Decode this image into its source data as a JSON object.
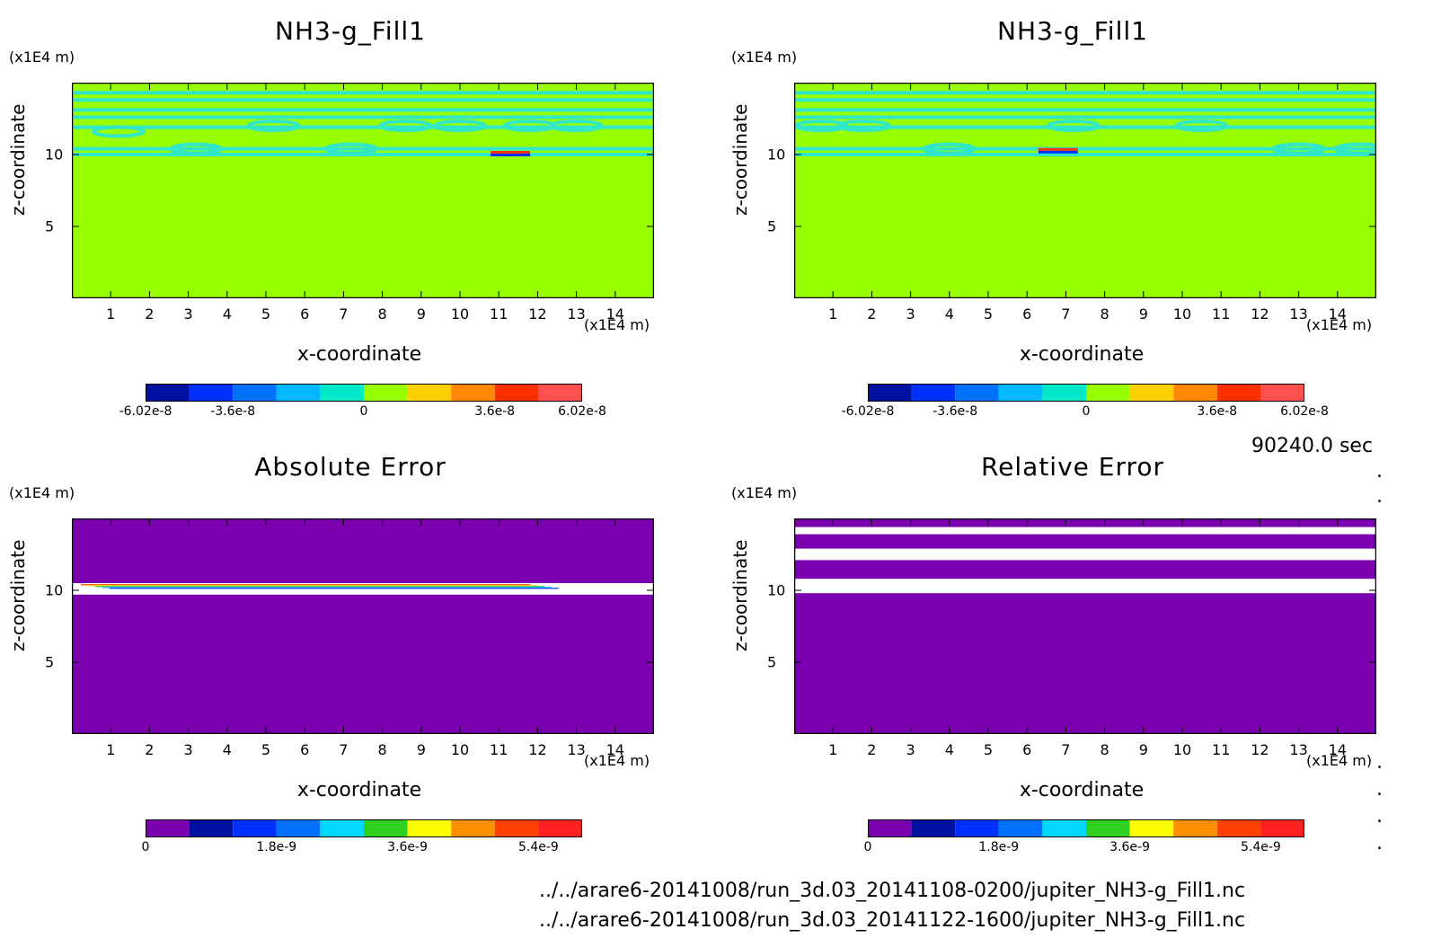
{
  "colors": {
    "background": "#98ff00",
    "contour": "#30e8c8",
    "error_bg": "#7a00b0",
    "white": "#ffffff",
    "colorbar_top": [
      "#0010a0",
      "#0030ff",
      "#0070ff",
      "#00b8ff",
      "#00e8c8",
      "#98ff00",
      "#ffd000",
      "#ff8800",
      "#ff3000",
      "#ff5050"
    ],
    "colorbar_bottom": [
      "#7a00b0",
      "#0010a0",
      "#0030ff",
      "#0070ff",
      "#00d8ff",
      "#30d020",
      "#ffff00",
      "#ff9000",
      "#ff4000",
      "#ff2020"
    ]
  },
  "annotations": {
    "timestamp": "90240.0 sec",
    "file_1": "../../arare6-20141008/run_3d.03_20141108-0200/jupiter_NH3-g_Fill1.nc",
    "file_2": "../../arare6-20141008/run_3d.03_20141122-1600/jupiter_NH3-g_Fill1.nc"
  },
  "panels": [
    {
      "title": "NH3-g_Fill1",
      "xlabel": "x-coordinate",
      "ylabel": "z-coordinate",
      "x_unit": "(x1E4 m)",
      "y_unit": "(x1E4 m)",
      "colorbar_labels": [
        "-6.02e-8",
        "-3.6e-8",
        "0",
        "3.6e-8",
        "6.02e-8"
      ]
    },
    {
      "title": "NH3-g_Fill1",
      "xlabel": "x-coordinate",
      "ylabel": "z-coordinate",
      "x_unit": "(x1E4 m)",
      "y_unit": "(x1E4 m)",
      "colorbar_labels": [
        "-6.02e-8",
        "-3.6e-8",
        "0",
        "3.6e-8",
        "6.02e-8"
      ]
    },
    {
      "title": "Absolute Error",
      "xlabel": "x-coordinate",
      "ylabel": "z-coordinate",
      "x_unit": "(x1E4 m)",
      "y_unit": "(x1E4 m)",
      "colorbar_labels": [
        "0",
        "1.8e-9",
        "3.6e-9",
        "5.4e-9"
      ]
    },
    {
      "title": "Relative Error",
      "xlabel": "x-coordinate",
      "ylabel": "z-coordinate",
      "x_unit": "(x1E4 m)",
      "y_unit": "(x1E4 m)",
      "colorbar_labels": [
        "0",
        "1.8e-9",
        "3.6e-9",
        "5.4e-9"
      ]
    }
  ],
  "chart_data": [
    {
      "type": "heatmap",
      "title": "NH3-g_Fill1",
      "xlabel": "x-coordinate",
      "ylabel": "z-coordinate",
      "xlim": [
        0,
        15
      ],
      "ylim": [
        0,
        15
      ],
      "xticks": [
        1,
        2,
        3,
        4,
        5,
        6,
        7,
        8,
        9,
        10,
        11,
        12,
        13,
        14
      ],
      "yticks": [
        5,
        10
      ],
      "colorbar": {
        "min": -6.02e-08,
        "max": 6.02e-08,
        "ticks": [
          "-6.02e-8",
          "-3.6e-8",
          "0",
          "3.6e-8",
          "6.02e-8"
        ]
      },
      "features": {
        "field_value": 0,
        "contour_bands_z": [
          14.3,
          13.8,
          13.1,
          12.6,
          11.9,
          10.4,
          10.0
        ],
        "extreme_location": {
          "x": 11.3,
          "z": 10.0,
          "sign": "positive above, negative below"
        }
      }
    },
    {
      "type": "heatmap",
      "title": "NH3-g_Fill1",
      "xlabel": "x-coordinate",
      "ylabel": "z-coordinate",
      "xlim": [
        0,
        15
      ],
      "ylim": [
        0,
        15
      ],
      "xticks": [
        1,
        2,
        3,
        4,
        5,
        6,
        7,
        8,
        9,
        10,
        11,
        12,
        13,
        14
      ],
      "yticks": [
        5,
        10
      ],
      "colorbar": {
        "min": -6.02e-08,
        "max": 6.02e-08,
        "ticks": [
          "-6.02e-8",
          "-3.6e-8",
          "0",
          "3.6e-8",
          "6.02e-8"
        ]
      },
      "features": {
        "field_value": 0,
        "contour_bands_z": [
          14.3,
          13.8,
          13.1,
          12.6,
          11.9,
          10.4,
          10.0
        ],
        "extreme_location": {
          "x": 6.8,
          "z": 10.2,
          "sign": "positive above, negative below"
        }
      }
    },
    {
      "type": "heatmap",
      "title": "Absolute Error",
      "xlabel": "x-coordinate",
      "ylabel": "z-coordinate",
      "xlim": [
        0,
        15
      ],
      "ylim": [
        0,
        15
      ],
      "xticks": [
        1,
        2,
        3,
        4,
        5,
        6,
        7,
        8,
        9,
        10,
        11,
        12,
        13,
        14
      ],
      "yticks": [
        5,
        10
      ],
      "colorbar": {
        "min": 0,
        "max": 6.02e-09,
        "ticks": [
          "0",
          "1.8e-9",
          "3.6e-9",
          "5.4e-9"
        ]
      },
      "features": {
        "error_band_z": [
          9.7,
          10.5
        ]
      }
    },
    {
      "type": "heatmap",
      "title": "Relative Error",
      "xlabel": "x-coordinate",
      "ylabel": "z-coordinate",
      "xlim": [
        0,
        15
      ],
      "ylim": [
        0,
        15
      ],
      "xticks": [
        1,
        2,
        3,
        4,
        5,
        6,
        7,
        8,
        9,
        10,
        11,
        12,
        13,
        14
      ],
      "yticks": [
        5,
        10
      ],
      "colorbar": {
        "min": 0,
        "max": 6.02e-09,
        "ticks": [
          "0",
          "1.8e-9",
          "3.6e-9",
          "5.4e-9"
        ]
      },
      "features": {
        "white_bands_z": [
          [
            13.9,
            14.4
          ],
          [
            12.1,
            12.9
          ],
          [
            9.8,
            10.8
          ]
        ]
      }
    }
  ]
}
